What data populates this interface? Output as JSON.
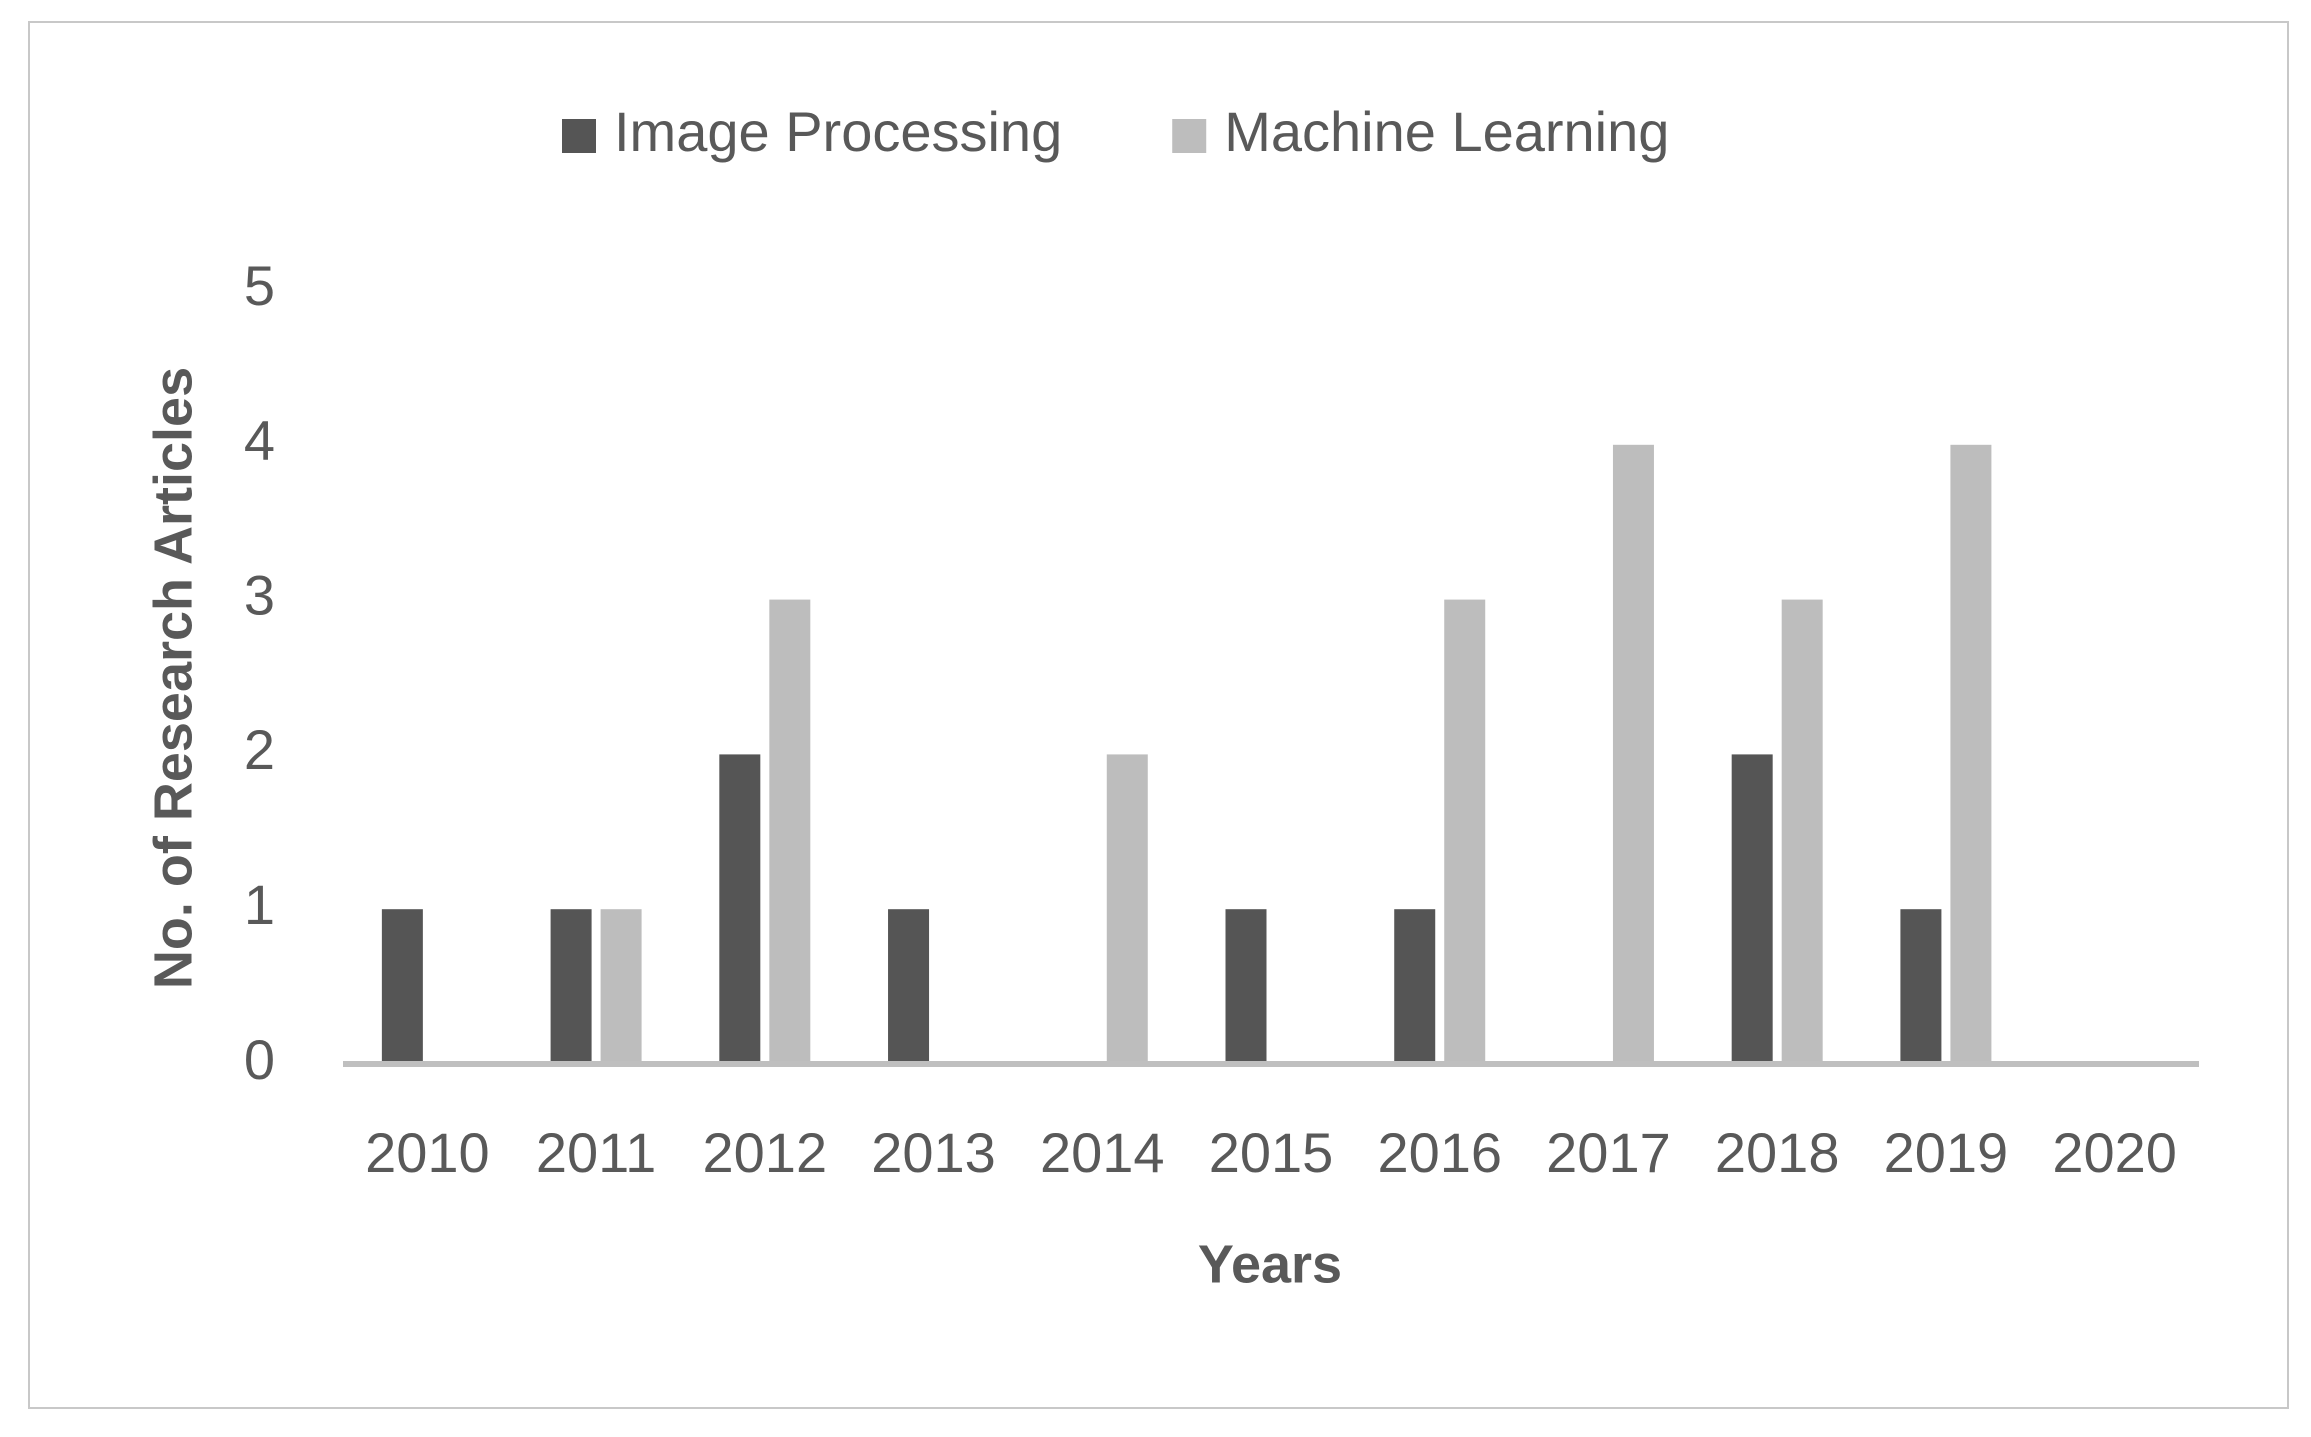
{
  "chart_data": {
    "type": "bar",
    "x_label": "Years",
    "y_label": "No. of Research Articles",
    "categories": [
      "2010",
      "2011",
      "2012",
      "2013",
      "2014",
      "2015",
      "2016",
      "2017",
      "2018",
      "2019",
      "2020"
    ],
    "series": [
      {
        "name": "Image Processing",
        "color": "#555555",
        "values": [
          1,
          1,
          2,
          1,
          0,
          1,
          1,
          0,
          2,
          1,
          0
        ]
      },
      {
        "name": "Machine Learning",
        "color": "#bdbdbd",
        "values": [
          0,
          1,
          3,
          0,
          2,
          0,
          3,
          4,
          3,
          4,
          0
        ]
      }
    ],
    "ylim": [
      0,
      5
    ],
    "yticks": [
      0,
      1,
      2,
      3,
      4,
      5
    ],
    "grid": false,
    "legend": "top"
  }
}
